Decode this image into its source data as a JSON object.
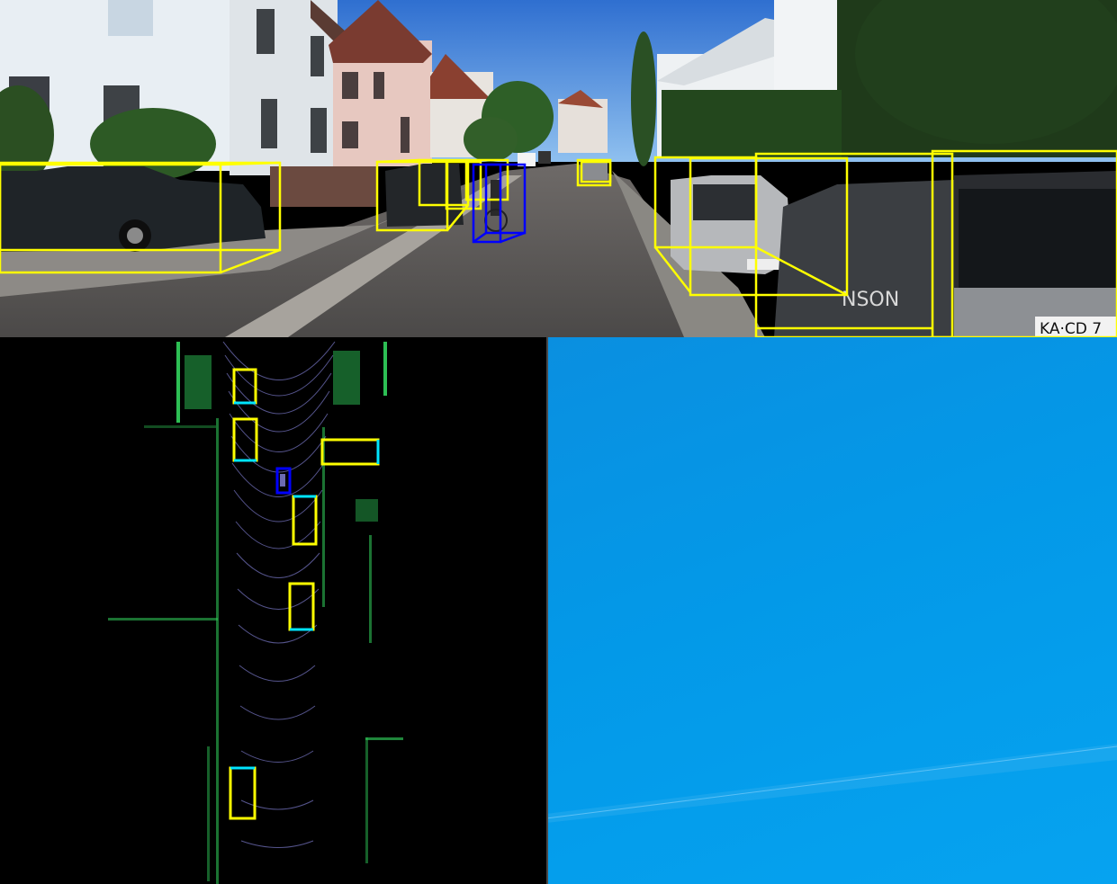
{
  "window_title": "",
  "colors": {
    "car_box": "#ffff00",
    "cyclist_box": "#0000ff",
    "heading_edge": "#00e5ff",
    "desktop_blue": "#0399e8",
    "lidar_green": "#3cff70"
  },
  "camera": {
    "license_plates": [
      "KA·CD 7"
    ],
    "storefront_text": "NSON",
    "objects": [
      {
        "class": "Car"
      },
      {
        "class": "Car"
      },
      {
        "class": "Car"
      },
      {
        "class": "Car"
      },
      {
        "class": "Car"
      },
      {
        "class": "Car"
      },
      {
        "class": "Cyclist"
      }
    ]
  },
  "bev": {
    "objects": [
      {
        "class": "Car"
      },
      {
        "class": "Car"
      },
      {
        "class": "Car"
      },
      {
        "class": "Car"
      },
      {
        "class": "Car"
      },
      {
        "class": "Car"
      },
      {
        "class": "Cyclist"
      }
    ]
  },
  "desktop": {
    "icons": []
  }
}
